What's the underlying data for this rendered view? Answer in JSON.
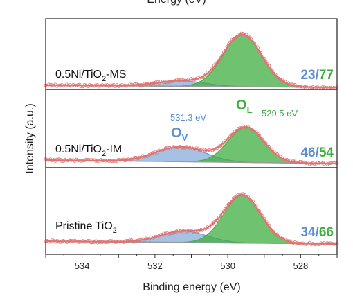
{
  "chart_data": {
    "type": "line",
    "title_fragment": "Energy (eV)",
    "xlabel": "Binding energy (eV)",
    "ylabel": "Intensity (a.u.)",
    "xlim": [
      535,
      527
    ],
    "x_reversed": true,
    "x_ticks": [
      "534",
      "532",
      "530",
      "528"
    ],
    "x_tick_values": [
      534,
      532,
      530,
      528
    ],
    "grid": false,
    "colors": {
      "ov": "#5b8fd0",
      "ol": "#3fae3f",
      "data": "#e07272",
      "baseline": "#9a9a9a"
    },
    "peak_annotations": {
      "ov_energy": "531.3 eV",
      "ol_energy": "529.5 eV",
      "ov_species": "O",
      "ov_sub": "V",
      "ol_species": "O",
      "ol_sub": "L"
    },
    "panels": [
      {
        "label_prefix": "0.5Ni/TiO",
        "label_sub": "2",
        "label_suffix": "-MS",
        "ratio_ov": "23",
        "ratio_sep": "/",
        "ratio_ol": "77",
        "ov_center": 531.3,
        "ov_width": 1.55,
        "ov_height": 0.085,
        "ol_center": 529.6,
        "ol_width": 1.25,
        "ol_height": 0.82
      },
      {
        "label_prefix": "0.5Ni/TiO",
        "label_sub": "2",
        "label_suffix": "-IM",
        "ratio_ov": "46",
        "ratio_sep": "/",
        "ratio_ol": "54",
        "ov_center": 531.3,
        "ov_width": 1.6,
        "ov_height": 0.22,
        "ol_center": 529.5,
        "ol_width": 1.15,
        "ol_height": 0.52
      },
      {
        "label_prefix": "Pristine TiO",
        "label_sub": "2",
        "label_suffix": "",
        "ratio_ov": "34",
        "ratio_sep": "/",
        "ratio_ol": "66",
        "ov_center": 531.2,
        "ov_width": 1.5,
        "ov_height": 0.17,
        "ol_center": 529.6,
        "ol_width": 1.2,
        "ol_height": 0.72
      }
    ]
  }
}
